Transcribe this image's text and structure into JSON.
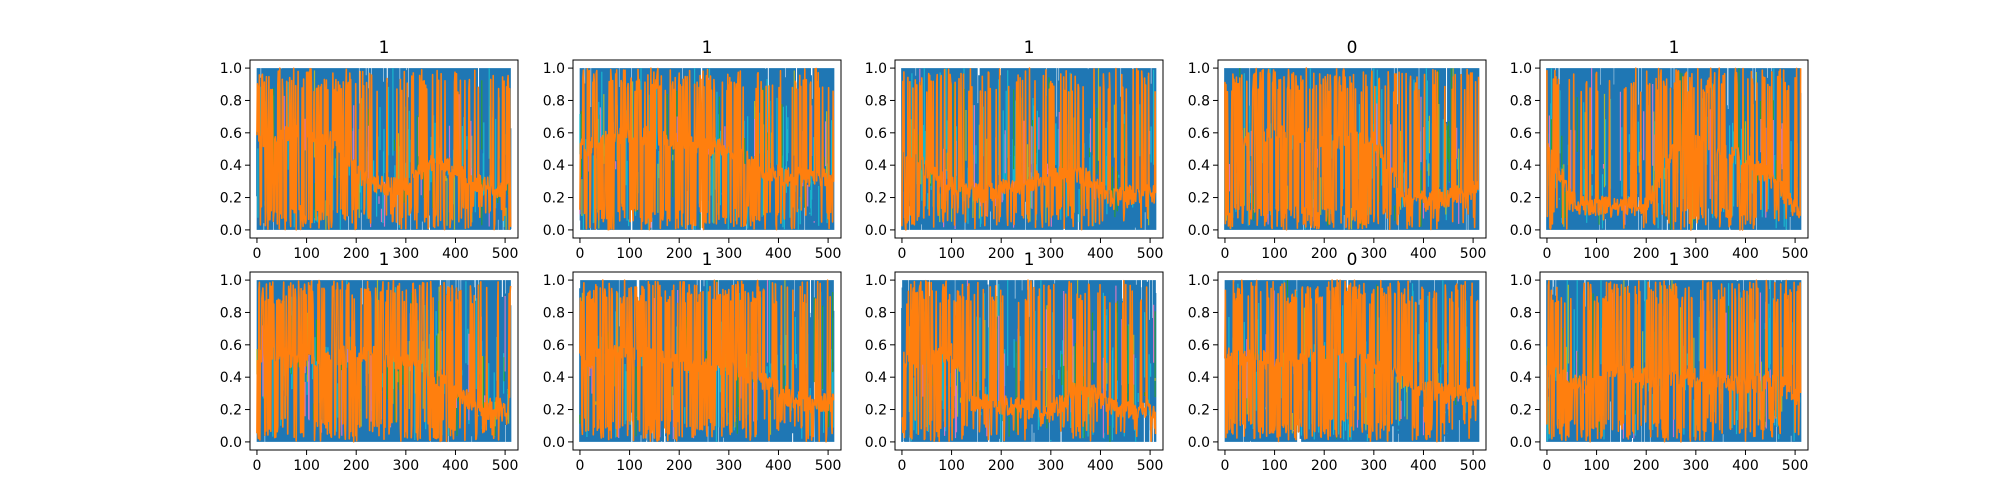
{
  "figure": {
    "background": "#ffffff",
    "layout": "2 rows x 5 columns of line plots"
  },
  "colors": {
    "dominant_series": "#1f77b4",
    "top_series": "#ff7f0e",
    "minor_series": [
      "#17becf",
      "#2ca02c",
      "#bcbd22",
      "#e377c2"
    ]
  },
  "chart_data": [
    {
      "type": "line",
      "title": "1",
      "xlim": [
        -14,
        526
      ],
      "ylim": [
        -0.05,
        1.05
      ],
      "xticks": [
        0,
        100,
        200,
        300,
        400,
        500
      ],
      "yticks": [
        0.0,
        0.2,
        0.4,
        0.6,
        0.8,
        1.0
      ],
      "x_range": [
        0,
        511
      ],
      "blue_band": [
        [
          0,
          0.35
        ],
        [
          60,
          0.5
        ],
        [
          150,
          0.55
        ],
        [
          220,
          0.3
        ],
        [
          300,
          0.35
        ],
        [
          360,
          0.6
        ],
        [
          440,
          0.4
        ],
        [
          511,
          0.35
        ]
      ],
      "orange_trend": [
        [
          0,
          0.55
        ],
        [
          80,
          0.6
        ],
        [
          160,
          0.55
        ],
        [
          200,
          0.35
        ],
        [
          240,
          0.28
        ],
        [
          300,
          0.26
        ],
        [
          360,
          0.45
        ],
        [
          430,
          0.3
        ],
        [
          470,
          0.26
        ],
        [
          511,
          0.26
        ]
      ],
      "grid": false,
      "legend": "none"
    },
    {
      "type": "line",
      "title": "1",
      "xlim": [
        -14,
        526
      ],
      "ylim": [
        -0.05,
        1.05
      ],
      "xticks": [
        0,
        100,
        200,
        300,
        400,
        500
      ],
      "yticks": [
        0.0,
        0.2,
        0.4,
        0.6,
        0.8,
        1.0
      ],
      "x_range": [
        0,
        511
      ],
      "blue_band": [
        [
          0,
          0.45
        ],
        [
          100,
          0.55
        ],
        [
          200,
          0.5
        ],
        [
          300,
          0.55
        ],
        [
          380,
          0.4
        ],
        [
          450,
          0.3
        ],
        [
          511,
          0.3
        ]
      ],
      "orange_trend": [
        [
          0,
          0.5
        ],
        [
          100,
          0.6
        ],
        [
          200,
          0.55
        ],
        [
          300,
          0.5
        ],
        [
          380,
          0.35
        ],
        [
          420,
          0.33
        ],
        [
          511,
          0.32
        ]
      ],
      "grid": false,
      "legend": "none"
    },
    {
      "type": "line",
      "title": "1",
      "xlim": [
        -14,
        526
      ],
      "ylim": [
        -0.05,
        1.05
      ],
      "xticks": [
        0,
        100,
        200,
        300,
        400,
        500
      ],
      "yticks": [
        0.0,
        0.2,
        0.4,
        0.6,
        0.8,
        1.0
      ],
      "x_range": [
        0,
        511
      ],
      "blue_band": [
        [
          0,
          0.4
        ],
        [
          80,
          0.45
        ],
        [
          160,
          0.35
        ],
        [
          260,
          0.45
        ],
        [
          360,
          0.3
        ],
        [
          440,
          0.3
        ],
        [
          511,
          0.3
        ]
      ],
      "orange_trend": [
        [
          0,
          0.5
        ],
        [
          80,
          0.3
        ],
        [
          160,
          0.22
        ],
        [
          260,
          0.3
        ],
        [
          360,
          0.35
        ],
        [
          420,
          0.2
        ],
        [
          470,
          0.22
        ],
        [
          511,
          0.22
        ]
      ],
      "grid": false,
      "legend": "none"
    },
    {
      "type": "line",
      "title": "0",
      "xlim": [
        -14,
        526
      ],
      "ylim": [
        -0.05,
        1.05
      ],
      "xticks": [
        0,
        100,
        200,
        300,
        400,
        500
      ],
      "yticks": [
        0.0,
        0.2,
        0.4,
        0.6,
        0.8,
        1.0
      ],
      "x_range": [
        0,
        511
      ],
      "blue_band": [
        [
          0,
          0.5
        ],
        [
          100,
          0.5
        ],
        [
          200,
          0.55
        ],
        [
          300,
          0.5
        ],
        [
          360,
          0.4
        ],
        [
          450,
          0.4
        ],
        [
          511,
          0.4
        ]
      ],
      "orange_trend": [
        [
          0,
          0.55
        ],
        [
          100,
          0.6
        ],
        [
          200,
          0.55
        ],
        [
          300,
          0.55
        ],
        [
          360,
          0.2
        ],
        [
          420,
          0.18
        ],
        [
          511,
          0.25
        ]
      ],
      "grid": false,
      "legend": "none"
    },
    {
      "type": "line",
      "title": "1",
      "xlim": [
        -14,
        526
      ],
      "ylim": [
        -0.05,
        1.05
      ],
      "xticks": [
        0,
        100,
        200,
        300,
        400,
        500
      ],
      "yticks": [
        0.0,
        0.2,
        0.4,
        0.6,
        0.8,
        1.0
      ],
      "x_range": [
        0,
        511
      ],
      "blue_band": [
        [
          0,
          0.3
        ],
        [
          60,
          0.45
        ],
        [
          200,
          0.4
        ],
        [
          300,
          0.5
        ],
        [
          420,
          0.4
        ],
        [
          511,
          0.3
        ]
      ],
      "orange_trend": [
        [
          0,
          0.5
        ],
        [
          60,
          0.15
        ],
        [
          200,
          0.15
        ],
        [
          260,
          0.55
        ],
        [
          360,
          0.5
        ],
        [
          460,
          0.3
        ],
        [
          500,
          0.12
        ],
        [
          511,
          0.15
        ]
      ],
      "grid": false,
      "legend": "none"
    },
    {
      "type": "line",
      "title": "1",
      "xlim": [
        -14,
        526
      ],
      "ylim": [
        -0.05,
        1.05
      ],
      "xticks": [
        0,
        100,
        200,
        300,
        400,
        500
      ],
      "yticks": [
        0.0,
        0.2,
        0.4,
        0.6,
        0.8,
        1.0
      ],
      "x_range": [
        0,
        511
      ],
      "blue_band": [
        [
          0,
          0.5
        ],
        [
          100,
          0.5
        ],
        [
          200,
          0.55
        ],
        [
          300,
          0.5
        ],
        [
          420,
          0.3
        ],
        [
          511,
          0.3
        ]
      ],
      "orange_trend": [
        [
          0,
          0.55
        ],
        [
          100,
          0.5
        ],
        [
          200,
          0.55
        ],
        [
          300,
          0.5
        ],
        [
          410,
          0.3
        ],
        [
          440,
          0.22
        ],
        [
          511,
          0.22
        ]
      ],
      "grid": false,
      "legend": "none"
    },
    {
      "type": "line",
      "title": "1",
      "xlim": [
        -14,
        526
      ],
      "ylim": [
        -0.05,
        1.05
      ],
      "xticks": [
        0,
        100,
        200,
        300,
        400,
        500
      ],
      "yticks": [
        0.0,
        0.2,
        0.4,
        0.6,
        0.8,
        1.0
      ],
      "x_range": [
        0,
        511
      ],
      "blue_band": [
        [
          0,
          0.5
        ],
        [
          100,
          0.5
        ],
        [
          200,
          0.45
        ],
        [
          300,
          0.5
        ],
        [
          400,
          0.45
        ],
        [
          460,
          0.4
        ],
        [
          511,
          0.4
        ]
      ],
      "orange_trend": [
        [
          0,
          0.5
        ],
        [
          100,
          0.55
        ],
        [
          200,
          0.5
        ],
        [
          300,
          0.45
        ],
        [
          360,
          0.4
        ],
        [
          420,
          0.28
        ],
        [
          460,
          0.24
        ],
        [
          511,
          0.24
        ]
      ],
      "grid": false,
      "legend": "none"
    },
    {
      "type": "line",
      "title": "1",
      "xlim": [
        -14,
        526
      ],
      "ylim": [
        -0.05,
        1.05
      ],
      "xticks": [
        0,
        100,
        200,
        300,
        400,
        500
      ],
      "yticks": [
        0.0,
        0.2,
        0.4,
        0.6,
        0.8,
        1.0
      ],
      "x_range": [
        0,
        511
      ],
      "blue_band": [
        [
          0,
          0.45
        ],
        [
          140,
          0.5
        ],
        [
          220,
          0.35
        ],
        [
          300,
          0.4
        ],
        [
          420,
          0.35
        ],
        [
          511,
          0.3
        ]
      ],
      "orange_trend": [
        [
          0,
          0.5
        ],
        [
          100,
          0.55
        ],
        [
          140,
          0.25
        ],
        [
          220,
          0.22
        ],
        [
          300,
          0.18
        ],
        [
          360,
          0.35
        ],
        [
          430,
          0.2
        ],
        [
          511,
          0.2
        ]
      ],
      "grid": false,
      "legend": "none"
    },
    {
      "type": "line",
      "title": "0",
      "xlim": [
        -14,
        526
      ],
      "ylim": [
        -0.05,
        1.05
      ],
      "xticks": [
        0,
        100,
        200,
        300,
        400,
        500
      ],
      "yticks": [
        0.0,
        0.2,
        0.4,
        0.6,
        0.8,
        1.0
      ],
      "x_range": [
        0,
        511
      ],
      "blue_band": [
        [
          0,
          0.5
        ],
        [
          100,
          0.55
        ],
        [
          200,
          0.5
        ],
        [
          300,
          0.5
        ],
        [
          360,
          0.4
        ],
        [
          440,
          0.35
        ],
        [
          511,
          0.35
        ]
      ],
      "orange_trend": [
        [
          0,
          0.55
        ],
        [
          100,
          0.5
        ],
        [
          200,
          0.55
        ],
        [
          300,
          0.5
        ],
        [
          360,
          0.38
        ],
        [
          440,
          0.3
        ],
        [
          511,
          0.28
        ]
      ],
      "grid": false,
      "legend": "none"
    },
    {
      "type": "line",
      "title": "1",
      "xlim": [
        -14,
        526
      ],
      "ylim": [
        -0.05,
        1.05
      ],
      "xticks": [
        0,
        100,
        200,
        300,
        400,
        500
      ],
      "yticks": [
        0.0,
        0.2,
        0.4,
        0.6,
        0.8,
        1.0
      ],
      "x_range": [
        0,
        511
      ],
      "blue_band": [
        [
          0,
          0.4
        ],
        [
          100,
          0.5
        ],
        [
          200,
          0.45
        ],
        [
          300,
          0.5
        ],
        [
          400,
          0.4
        ],
        [
          511,
          0.35
        ]
      ],
      "orange_trend": [
        [
          0,
          0.45
        ],
        [
          60,
          0.35
        ],
        [
          120,
          0.45
        ],
        [
          200,
          0.4
        ],
        [
          300,
          0.4
        ],
        [
          400,
          0.35
        ],
        [
          460,
          0.38
        ],
        [
          511,
          0.25
        ]
      ],
      "grid": false,
      "legend": "none"
    }
  ]
}
